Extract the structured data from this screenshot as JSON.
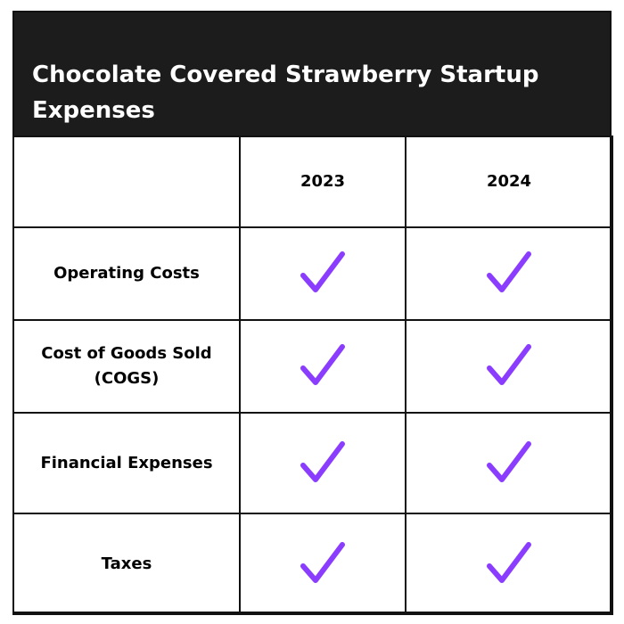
{
  "header": {
    "title": "Chocolate Covered Strawberry Startup Expenses"
  },
  "table": {
    "columns": [
      "2023",
      "2024"
    ],
    "rows": [
      "Operating Costs",
      "Cost of Goods Sold (COGS)",
      "Financial Expenses",
      "Taxes"
    ]
  }
}
